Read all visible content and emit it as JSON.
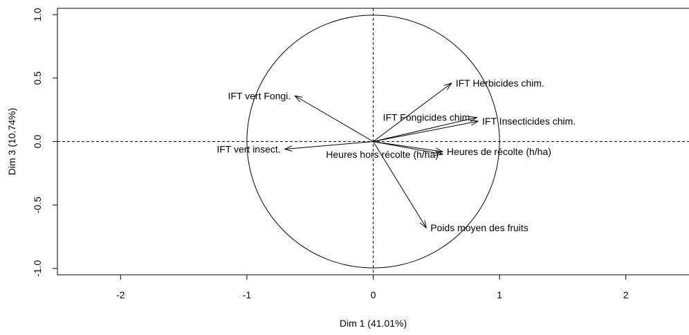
{
  "chart_data": {
    "type": "scatter",
    "title": "",
    "xlabel": "Dim 1 (41.01%)",
    "ylabel": "Dim 3 (10.74%)",
    "xlim": [
      -2.5,
      2.5
    ],
    "ylim": [
      -1.05,
      1.05
    ],
    "x_ticks": [
      -2,
      -1,
      0,
      1,
      2
    ],
    "x_tick_labels": [
      "-2",
      "-1",
      "0",
      "1",
      "2"
    ],
    "y_ticks": [
      -1.0,
      -0.5,
      0.0,
      0.5,
      1.0
    ],
    "y_tick_labels": [
      "-1.0",
      "-0.5",
      "0.0",
      "0.5",
      "1.0"
    ],
    "grid": false,
    "reference_lines": [
      {
        "axis": "x",
        "value": 0
      },
      {
        "axis": "y",
        "value": 0
      }
    ],
    "correlation_circle_radius": 1,
    "series": [
      {
        "label": "IFT Herbicides chim.",
        "x": 0.62,
        "y": 0.46,
        "anchor": "start"
      },
      {
        "label": "IFT vert Fongi.",
        "x": -0.62,
        "y": 0.36,
        "anchor": "end"
      },
      {
        "label": "IFT Fongicides chim.",
        "x": 0.82,
        "y": 0.19,
        "anchor": "end"
      },
      {
        "label": "IFT Insecticides chim.",
        "x": 0.83,
        "y": 0.16,
        "anchor": "start"
      },
      {
        "label": "IFT vert insect.",
        "x": -0.7,
        "y": -0.06,
        "anchor": "end"
      },
      {
        "label": "Heures hors récolte (h/ha)",
        "x": 0.55,
        "y": -0.1,
        "anchor": "end"
      },
      {
        "label": "Heures de récolte (h/ha)",
        "x": 0.55,
        "y": -0.08,
        "anchor": "start"
      },
      {
        "label": "Poids moyen des fruits",
        "x": 0.42,
        "y": -0.68,
        "anchor": "start"
      }
    ]
  }
}
